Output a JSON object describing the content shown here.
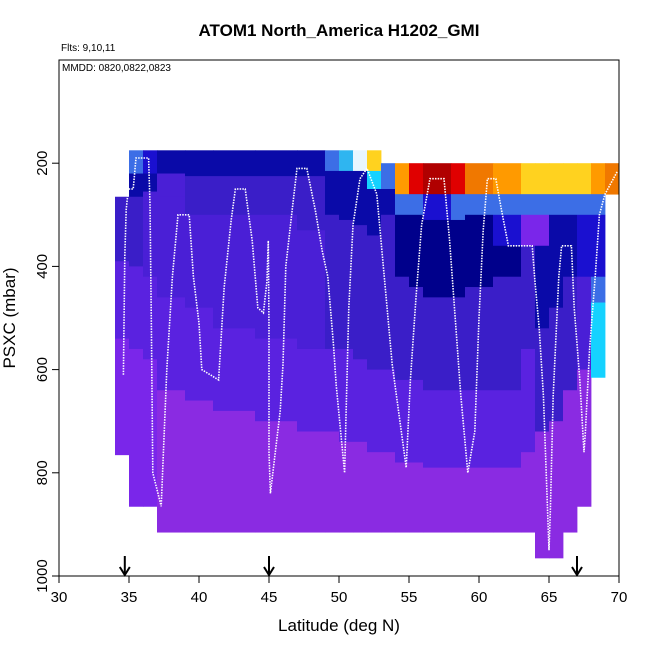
{
  "chart_data": {
    "type": "heatmap",
    "title": "ATOM1 North_America H1202_GMI",
    "annotations": [
      "Flts: 9,10,11",
      "MMDD: 0820,0822,0823"
    ],
    "xlabel": "Latitude (deg N)",
    "ylabel": "PSXC (mbar)",
    "xlim": [
      30,
      70
    ],
    "ylim": [
      1000,
      0
    ],
    "xticks": [
      30,
      35,
      40,
      45,
      50,
      55,
      60,
      65,
      70
    ],
    "yticks": [
      200,
      400,
      600,
      800,
      1000
    ],
    "xtick_labels": [
      "30",
      "35",
      "40",
      "45",
      "50",
      "55",
      "60",
      "65",
      "70"
    ],
    "ytick_labels": [
      "200",
      "400",
      "600",
      "800",
      "1000"
    ],
    "arrows_at_latitude": [
      34.7,
      45.0,
      67.0
    ],
    "colors": {
      "deep_navy": "#00008b",
      "navy": "#0a0aa8",
      "blue": "#1a10d0",
      "indigo": "#3a1ec8",
      "violet_dark": "#4a1fd6",
      "violet": "#5a22e0",
      "purple": "#7a26ea",
      "purple_light": "#8a2be2",
      "mid_blue": "#3c6ee6",
      "light_blue": "#2fb5f0",
      "cyan": "#15d2ff",
      "pale": "#e8f6ff",
      "yellow": "#ffd21f",
      "orange": "#ff9a00",
      "dark_orange": "#f07800",
      "red": "#e00000",
      "dark_red": "#b00000",
      "white_trace": "#ffffff"
    },
    "heat_columns": [
      {
        "x0": 34.0,
        "x1": 35.0,
        "p_top": 265,
        "p_bot": 765,
        "bands": [
          [
            265,
            390,
            "indigo"
          ],
          [
            390,
            540,
            "violet"
          ],
          [
            540,
            765,
            "purple"
          ]
        ]
      },
      {
        "x0": 35.0,
        "x1": 36.0,
        "p_top": 175,
        "p_bot": 865,
        "bands": [
          [
            175,
            220,
            "mid_blue"
          ],
          [
            220,
            265,
            "navy"
          ],
          [
            265,
            400,
            "indigo"
          ],
          [
            400,
            560,
            "violet"
          ],
          [
            560,
            865,
            "purple"
          ]
        ]
      },
      {
        "x0": 36.0,
        "x1": 37.0,
        "p_top": 175,
        "p_bot": 865,
        "bands": [
          [
            175,
            220,
            "blue"
          ],
          [
            220,
            255,
            "navy"
          ],
          [
            255,
            420,
            "violet_dark"
          ],
          [
            420,
            580,
            "violet"
          ],
          [
            580,
            865,
            "purple"
          ]
        ]
      },
      {
        "x0": 37.0,
        "x1": 39.0,
        "p_top": 175,
        "p_bot": 915,
        "bands": [
          [
            175,
            220,
            "navy"
          ],
          [
            220,
            265,
            "violet_dark"
          ],
          [
            265,
            460,
            "violet_dark"
          ],
          [
            460,
            640,
            "violet"
          ],
          [
            640,
            915,
            "purple_light"
          ]
        ]
      },
      {
        "x0": 39.0,
        "x1": 41.0,
        "p_top": 175,
        "p_bot": 915,
        "bands": [
          [
            175,
            225,
            "navy"
          ],
          [
            225,
            300,
            "indigo"
          ],
          [
            300,
            480,
            "violet_dark"
          ],
          [
            480,
            660,
            "violet"
          ],
          [
            660,
            915,
            "purple_light"
          ]
        ]
      },
      {
        "x0": 41.0,
        "x1": 44.0,
        "p_top": 175,
        "p_bot": 915,
        "bands": [
          [
            175,
            225,
            "navy"
          ],
          [
            225,
            300,
            "indigo"
          ],
          [
            300,
            520,
            "violet_dark"
          ],
          [
            520,
            680,
            "violet"
          ],
          [
            680,
            915,
            "purple_light"
          ]
        ]
      },
      {
        "x0": 44.0,
        "x1": 47.0,
        "p_top": 175,
        "p_bot": 915,
        "bands": [
          [
            175,
            225,
            "navy"
          ],
          [
            225,
            300,
            "indigo"
          ],
          [
            300,
            540,
            "violet_dark"
          ],
          [
            540,
            700,
            "violet"
          ],
          [
            700,
            915,
            "purple_light"
          ]
        ]
      },
      {
        "x0": 47.0,
        "x1": 49.0,
        "p_top": 175,
        "p_bot": 915,
        "bands": [
          [
            175,
            225,
            "navy"
          ],
          [
            225,
            330,
            "indigo"
          ],
          [
            330,
            560,
            "violet_dark"
          ],
          [
            560,
            720,
            "violet"
          ],
          [
            720,
            915,
            "purple_light"
          ]
        ]
      },
      {
        "x0": 49.0,
        "x1": 50.0,
        "p_top": 175,
        "p_bot": 915,
        "bands": [
          [
            175,
            215,
            "mid_blue"
          ],
          [
            215,
            300,
            "navy"
          ],
          [
            300,
            560,
            "indigo"
          ],
          [
            560,
            720,
            "violet"
          ],
          [
            720,
            915,
            "purple_light"
          ]
        ]
      },
      {
        "x0": 50.0,
        "x1": 51.0,
        "p_top": 175,
        "p_bot": 915,
        "bands": [
          [
            175,
            215,
            "light_blue"
          ],
          [
            215,
            310,
            "navy"
          ],
          [
            310,
            560,
            "indigo"
          ],
          [
            560,
            740,
            "violet"
          ],
          [
            740,
            915,
            "purple_light"
          ]
        ]
      },
      {
        "x0": 51.0,
        "x1": 52.0,
        "p_top": 175,
        "p_bot": 915,
        "bands": [
          [
            175,
            215,
            "pale"
          ],
          [
            215,
            320,
            "navy"
          ],
          [
            320,
            580,
            "indigo"
          ],
          [
            580,
            740,
            "violet"
          ],
          [
            740,
            915,
            "purple_light"
          ]
        ]
      },
      {
        "x0": 52.0,
        "x1": 53.0,
        "p_top": 175,
        "p_bot": 915,
        "bands": [
          [
            175,
            215,
            "yellow"
          ],
          [
            215,
            250,
            "cyan"
          ],
          [
            250,
            340,
            "navy"
          ],
          [
            340,
            600,
            "indigo"
          ],
          [
            600,
            760,
            "violet"
          ],
          [
            760,
            915,
            "purple_light"
          ]
        ]
      },
      {
        "x0": 53.0,
        "x1": 54.0,
        "p_top": 200,
        "p_bot": 915,
        "bands": [
          [
            200,
            250,
            "mid_blue"
          ],
          [
            250,
            300,
            "navy"
          ],
          [
            300,
            600,
            "indigo"
          ],
          [
            600,
            760,
            "violet"
          ],
          [
            760,
            915,
            "purple_light"
          ]
        ]
      },
      {
        "x0": 54.0,
        "x1": 55.0,
        "p_top": 200,
        "p_bot": 915,
        "bands": [
          [
            200,
            260,
            "orange"
          ],
          [
            260,
            300,
            "mid_blue"
          ],
          [
            300,
            420,
            "deep_navy"
          ],
          [
            420,
            620,
            "indigo"
          ],
          [
            620,
            780,
            "violet"
          ],
          [
            780,
            915,
            "purple_light"
          ]
        ]
      },
      {
        "x0": 55.0,
        "x1": 56.0,
        "p_top": 200,
        "p_bot": 915,
        "bands": [
          [
            200,
            260,
            "red"
          ],
          [
            260,
            300,
            "mid_blue"
          ],
          [
            300,
            440,
            "deep_navy"
          ],
          [
            440,
            620,
            "indigo"
          ],
          [
            620,
            780,
            "violet"
          ],
          [
            780,
            915,
            "purple_light"
          ]
        ]
      },
      {
        "x0": 56.0,
        "x1": 58.0,
        "p_top": 200,
        "p_bot": 915,
        "bands": [
          [
            200,
            260,
            "dark_red"
          ],
          [
            260,
            310,
            "blue"
          ],
          [
            310,
            460,
            "deep_navy"
          ],
          [
            460,
            640,
            "indigo"
          ],
          [
            640,
            790,
            "violet"
          ],
          [
            790,
            915,
            "purple_light"
          ]
        ]
      },
      {
        "x0": 58.0,
        "x1": 59.0,
        "p_top": 200,
        "p_bot": 915,
        "bands": [
          [
            200,
            260,
            "red"
          ],
          [
            260,
            310,
            "mid_blue"
          ],
          [
            310,
            460,
            "deep_navy"
          ],
          [
            460,
            640,
            "indigo"
          ],
          [
            640,
            790,
            "violet"
          ],
          [
            790,
            915,
            "purple_light"
          ]
        ]
      },
      {
        "x0": 59.0,
        "x1": 61.0,
        "p_top": 200,
        "p_bot": 915,
        "bands": [
          [
            200,
            260,
            "dark_orange"
          ],
          [
            260,
            300,
            "mid_blue"
          ],
          [
            300,
            440,
            "deep_navy"
          ],
          [
            440,
            640,
            "indigo"
          ],
          [
            640,
            790,
            "violet"
          ],
          [
            790,
            915,
            "purple_light"
          ]
        ]
      },
      {
        "x0": 61.0,
        "x1": 63.0,
        "p_top": 200,
        "p_bot": 915,
        "bands": [
          [
            200,
            260,
            "orange"
          ],
          [
            260,
            300,
            "mid_blue"
          ],
          [
            300,
            360,
            "blue"
          ],
          [
            360,
            420,
            "deep_navy"
          ],
          [
            420,
            640,
            "indigo"
          ],
          [
            640,
            790,
            "violet"
          ],
          [
            790,
            915,
            "purple_light"
          ]
        ]
      },
      {
        "x0": 63.0,
        "x1": 64.0,
        "p_top": 200,
        "p_bot": 915,
        "bands": [
          [
            200,
            260,
            "yellow"
          ],
          [
            260,
            300,
            "mid_blue"
          ],
          [
            300,
            360,
            "purple"
          ],
          [
            360,
            560,
            "indigo"
          ],
          [
            560,
            760,
            "violet"
          ],
          [
            760,
            915,
            "purple_light"
          ]
        ]
      },
      {
        "x0": 64.0,
        "x1": 65.0,
        "p_top": 200,
        "p_bot": 965,
        "bands": [
          [
            200,
            260,
            "yellow"
          ],
          [
            260,
            300,
            "mid_blue"
          ],
          [
            300,
            360,
            "purple"
          ],
          [
            360,
            520,
            "navy"
          ],
          [
            520,
            720,
            "indigo"
          ],
          [
            720,
            965,
            "purple_light"
          ]
        ]
      },
      {
        "x0": 65.0,
        "x1": 66.0,
        "p_top": 200,
        "p_bot": 965,
        "bands": [
          [
            200,
            260,
            "yellow"
          ],
          [
            260,
            300,
            "mid_blue"
          ],
          [
            300,
            480,
            "navy"
          ],
          [
            480,
            700,
            "indigo"
          ],
          [
            700,
            965,
            "purple_light"
          ]
        ]
      },
      {
        "x0": 66.0,
        "x1": 67.0,
        "p_top": 200,
        "p_bot": 915,
        "bands": [
          [
            200,
            260,
            "yellow"
          ],
          [
            260,
            300,
            "mid_blue"
          ],
          [
            300,
            420,
            "navy"
          ],
          [
            420,
            640,
            "indigo"
          ],
          [
            640,
            915,
            "purple_light"
          ]
        ]
      },
      {
        "x0": 67.0,
        "x1": 68.0,
        "p_top": 200,
        "p_bot": 865,
        "bands": [
          [
            200,
            260,
            "yellow"
          ],
          [
            260,
            300,
            "mid_blue"
          ],
          [
            300,
            420,
            "blue"
          ],
          [
            420,
            600,
            "violet_dark"
          ],
          [
            600,
            865,
            "purple_light"
          ]
        ]
      },
      {
        "x0": 68.0,
        "x1": 69.0,
        "p_top": 200,
        "p_bot": 615,
        "bands": [
          [
            200,
            260,
            "orange"
          ],
          [
            260,
            300,
            "mid_blue"
          ],
          [
            300,
            420,
            "blue"
          ],
          [
            420,
            470,
            "mid_blue"
          ],
          [
            470,
            615,
            "cyan"
          ]
        ]
      },
      {
        "x0": 69.0,
        "x1": 70.0,
        "p_top": 200,
        "p_bot": 260,
        "bands": [
          [
            200,
            260,
            "dark_orange"
          ]
        ]
      }
    ],
    "flight_track": [
      [
        34.6,
        610
      ],
      [
        34.7,
        380
      ],
      [
        34.8,
        290
      ],
      [
        34.95,
        250
      ],
      [
        35.3,
        250
      ],
      [
        35.5,
        190
      ],
      [
        36.4,
        190
      ],
      [
        36.5,
        280
      ],
      [
        36.6,
        520
      ],
      [
        36.7,
        800
      ],
      [
        37.3,
        865
      ],
      [
        37.7,
        600
      ],
      [
        38.1,
        420
      ],
      [
        38.5,
        300
      ],
      [
        39.3,
        300
      ],
      [
        39.6,
        420
      ],
      [
        40.0,
        510
      ],
      [
        40.2,
        600
      ],
      [
        41.4,
        620
      ],
      [
        41.8,
        440
      ],
      [
        42.3,
        310
      ],
      [
        42.6,
        250
      ],
      [
        43.3,
        250
      ],
      [
        43.8,
        350
      ],
      [
        44.2,
        480
      ],
      [
        44.6,
        490
      ],
      [
        44.85,
        430
      ],
      [
        44.95,
        350
      ],
      [
        45.0,
        520
      ],
      [
        45.0,
        760
      ],
      [
        45.1,
        840
      ],
      [
        45.8,
        680
      ],
      [
        46.0,
        590
      ],
      [
        46.2,
        400
      ],
      [
        46.7,
        280
      ],
      [
        47.0,
        210
      ],
      [
        47.7,
        210
      ],
      [
        48.3,
        290
      ],
      [
        48.8,
        370
      ],
      [
        49.2,
        420
      ],
      [
        49.6,
        550
      ],
      [
        49.8,
        630
      ],
      [
        50.4,
        800
      ],
      [
        50.5,
        690
      ],
      [
        50.7,
        480
      ],
      [
        51.0,
        320
      ],
      [
        51.5,
        230
      ],
      [
        52.0,
        210
      ],
      [
        52.7,
        260
      ],
      [
        53.1,
        380
      ],
      [
        53.5,
        500
      ],
      [
        53.8,
        590
      ],
      [
        54.8,
        790
      ],
      [
        55.1,
        620
      ],
      [
        55.5,
        460
      ],
      [
        55.9,
        320
      ],
      [
        56.5,
        230
      ],
      [
        57.5,
        230
      ],
      [
        57.9,
        350
      ],
      [
        58.3,
        500
      ],
      [
        58.7,
        650
      ],
      [
        59.2,
        800
      ],
      [
        59.7,
        720
      ],
      [
        60.0,
        500
      ],
      [
        60.3,
        330
      ],
      [
        60.6,
        230
      ],
      [
        61.2,
        230
      ],
      [
        61.6,
        290
      ],
      [
        62.1,
        360
      ],
      [
        63.8,
        360
      ],
      [
        64.0,
        430
      ],
      [
        64.3,
        520
      ],
      [
        64.6,
        650
      ],
      [
        64.8,
        800
      ],
      [
        65.0,
        950
      ],
      [
        65.1,
        870
      ],
      [
        65.3,
        650
      ],
      [
        65.7,
        420
      ],
      [
        65.9,
        360
      ],
      [
        66.6,
        360
      ],
      [
        66.8,
        480
      ],
      [
        67.2,
        620
      ],
      [
        67.5,
        760
      ],
      [
        67.6,
        720
      ],
      [
        67.9,
        560
      ],
      [
        68.3,
        420
      ],
      [
        68.6,
        300
      ],
      [
        69.0,
        260
      ],
      [
        69.4,
        240
      ],
      [
        69.9,
        215
      ]
    ]
  }
}
